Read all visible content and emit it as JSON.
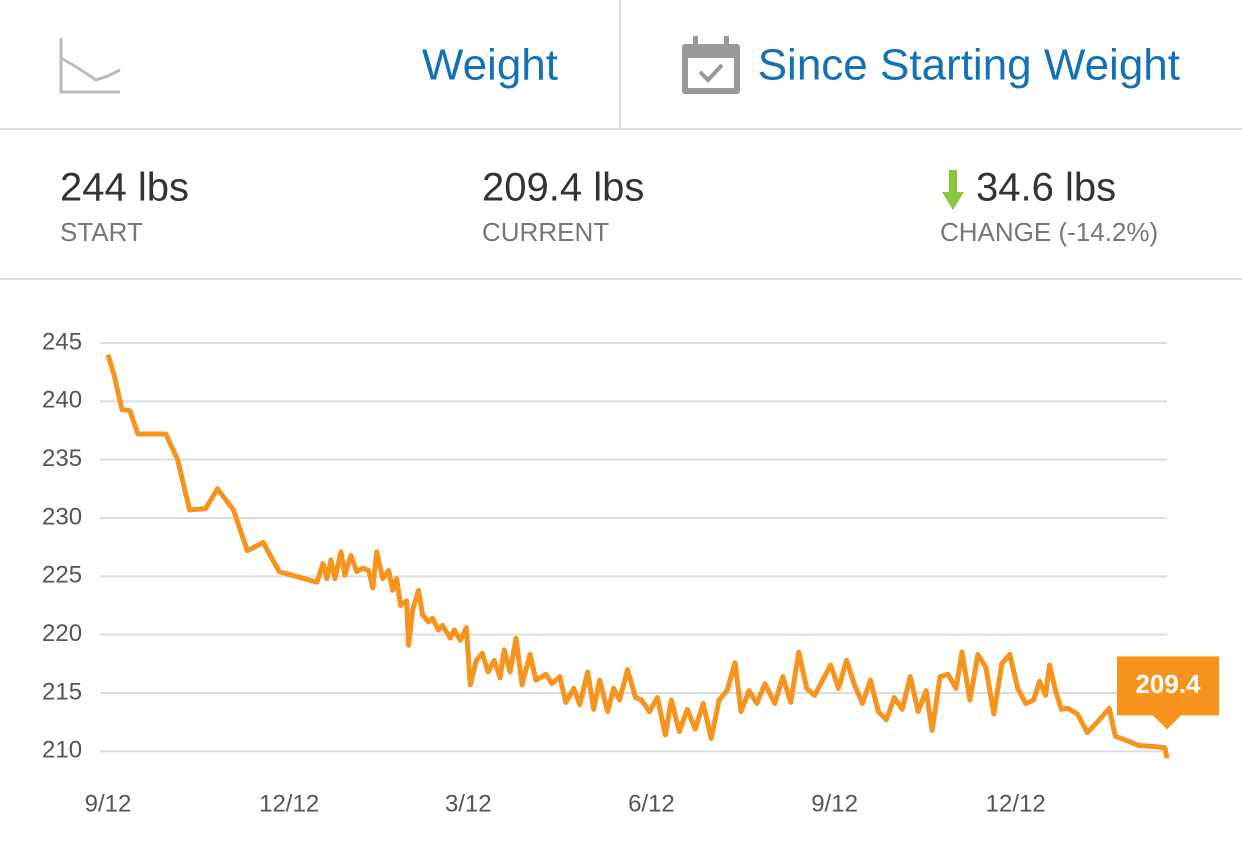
{
  "header": {
    "tabs": [
      "Weight",
      "Since Starting Weight"
    ]
  },
  "stats": [
    {
      "value": "244 lbs",
      "label": "START"
    },
    {
      "value": "209.4 lbs",
      "label": "CURRENT"
    },
    {
      "value": "34.6 lbs",
      "label": "CHANGE (-14.2%)"
    }
  ],
  "chart_data": {
    "type": "line",
    "color": "#f7941d",
    "grid": true,
    "x": [
      0,
      3,
      7,
      11,
      15,
      29,
      35,
      41,
      49,
      55,
      63,
      70,
      78,
      86,
      105,
      108,
      110,
      112,
      114,
      117,
      119,
      122,
      125,
      128,
      131,
      133,
      135,
      138,
      141,
      143,
      145,
      147,
      150,
      151,
      153,
      156,
      158,
      161,
      163,
      166,
      168,
      172,
      174,
      177,
      180,
      182,
      185,
      188,
      191,
      194,
      197,
      199,
      202,
      205,
      208,
      212,
      215,
      220,
      223,
      227,
      230,
      234,
      237,
      241,
      244,
      247,
      251,
      254,
      257,
      261,
      265,
      268,
      272,
      276,
      280,
      283,
      287,
      291,
      295,
      299,
      303,
      307,
      311,
      315,
      318,
      322,
      326,
      330,
      335,
      339,
      343,
      347,
      351,
      355,
      359,
      363,
      367,
      371,
      375,
      379,
      383,
      387,
      391,
      395,
      399,
      403,
      407,
      411,
      414,
      418,
      422,
      426,
      429,
      433,
      437,
      441,
      445,
      449,
      453,
      457,
      461,
      465,
      468,
      471,
      473,
      476,
      479,
      482,
      487,
      492,
      498,
      503,
      506,
      512,
      518,
      526,
      531,
      532
    ],
    "values": [
      244,
      242.3,
      239.3,
      239.2,
      237.2,
      237.2,
      235,
      230.7,
      230.8,
      232.5,
      230.7,
      227.2,
      227.9,
      225.4,
      224.5,
      226.1,
      224.8,
      226.4,
      224.8,
      227.1,
      225.1,
      226.8,
      225.4,
      225.7,
      225.5,
      224,
      227.1,
      224.8,
      225.5,
      223.8,
      224.8,
      222.5,
      222.9,
      219.1,
      222.1,
      223.8,
      221.7,
      221.1,
      221.4,
      220.4,
      220.8,
      219.7,
      220.4,
      219.5,
      220.6,
      215.7,
      217.8,
      218.4,
      216.8,
      217.8,
      216.3,
      218.7,
      216.8,
      219.7,
      215.7,
      218.3,
      216.1,
      216.6,
      215.8,
      216.4,
      214.2,
      215.4,
      214,
      216.8,
      213.6,
      216.1,
      213.4,
      215.4,
      214.4,
      217,
      214.6,
      214.4,
      213.4,
      214.6,
      211.4,
      214.4,
      211.7,
      213.6,
      211.9,
      214.1,
      211.1,
      214.4,
      215.2,
      217.6,
      213.4,
      215.2,
      214.1,
      215.8,
      214.1,
      216.4,
      214.2,
      218.5,
      215.4,
      214.8,
      216.1,
      217.4,
      215.4,
      217.8,
      215.7,
      214.1,
      216.1,
      213.4,
      212.7,
      214.6,
      213.6,
      216.4,
      213.4,
      215.2,
      211.8,
      216.4,
      216.6,
      215.4,
      218.5,
      214.4,
      218.3,
      217.2,
      213.2,
      217.5,
      218.3,
      215.4,
      214.1,
      214.4,
      216,
      214.8,
      217.4,
      215.2,
      213.6,
      213.7,
      213.2,
      211.6,
      212.7,
      213.7,
      211.3,
      210.9,
      210.5,
      210.4,
      210.3,
      209.4
    ],
    "xlim": [
      0,
      532
    ],
    "xticks": [
      {
        "value": 0,
        "label": "9/12"
      },
      {
        "value": 91,
        "label": "12/12"
      },
      {
        "value": 181,
        "label": "3/12"
      },
      {
        "value": 273,
        "label": "6/12"
      },
      {
        "value": 365,
        "label": "9/12"
      },
      {
        "value": 456,
        "label": "12/12"
      }
    ],
    "ylim": [
      209,
      245
    ],
    "yticks": [
      210,
      215,
      220,
      225,
      230,
      235,
      240,
      245
    ]
  }
}
